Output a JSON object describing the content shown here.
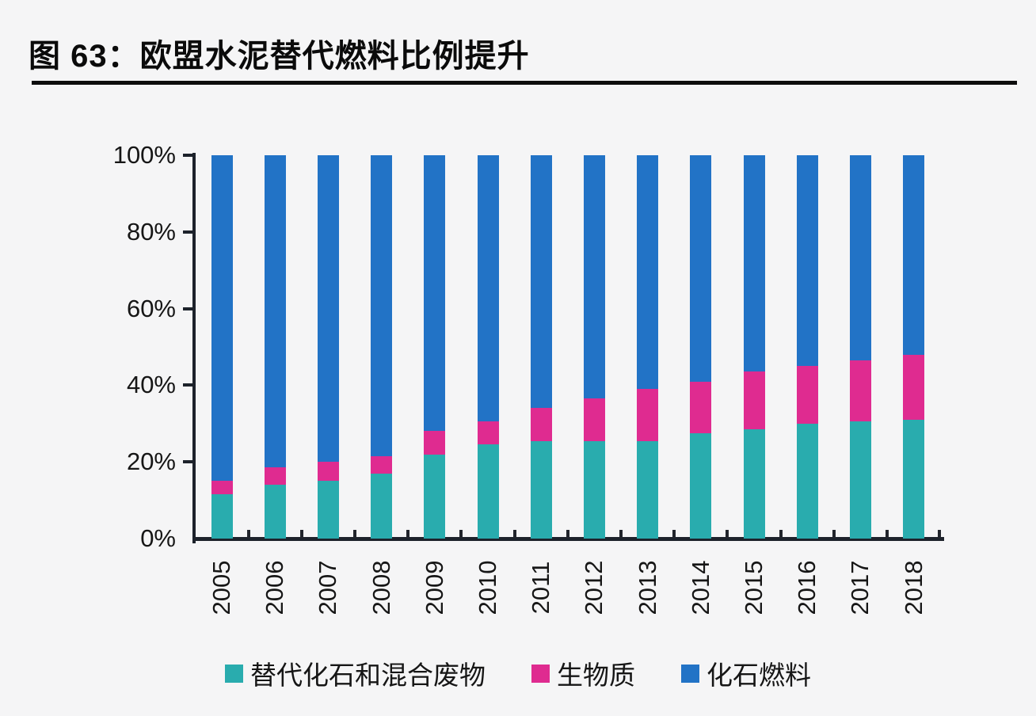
{
  "figure": {
    "title": "图 63：欧盟水泥替代燃料比例提升"
  },
  "chart_data": {
    "type": "bar",
    "stacked": true,
    "title": "欧盟水泥替代燃料比例提升",
    "xlabel": "",
    "ylabel": "",
    "ylim": [
      0,
      100
    ],
    "ytick_labels": [
      "0%",
      "20%",
      "40%",
      "60%",
      "80%",
      "100%"
    ],
    "grid": false,
    "legend_position": "bottom",
    "categories": [
      "2005",
      "2006",
      "2007",
      "2008",
      "2009",
      "2010",
      "2011",
      "2012",
      "2013",
      "2014",
      "2015",
      "2016",
      "2017",
      "2018"
    ],
    "series": [
      {
        "name": "替代化石和混合废物",
        "color": "#29ACAE",
        "values": [
          11.5,
          14,
          15,
          17,
          22,
          24.5,
          25.5,
          25.5,
          25.5,
          27.5,
          28.5,
          30,
          30.5,
          31
        ]
      },
      {
        "name": "生物质",
        "color": "#DF2B90",
        "values": [
          3.5,
          4.5,
          5,
          4.5,
          6,
          6,
          8.5,
          11,
          13.5,
          13.5,
          15,
          15,
          16,
          17
        ]
      },
      {
        "name": "化石燃料",
        "color": "#2273C6",
        "values": [
          85,
          81.5,
          80,
          78.5,
          72,
          69.5,
          66,
          63.5,
          61,
          59,
          56.5,
          55,
          53.5,
          52
        ]
      }
    ],
    "colors": {
      "axis": "#1d222b",
      "text": "#161616",
      "background": "#f5f5f6"
    }
  }
}
